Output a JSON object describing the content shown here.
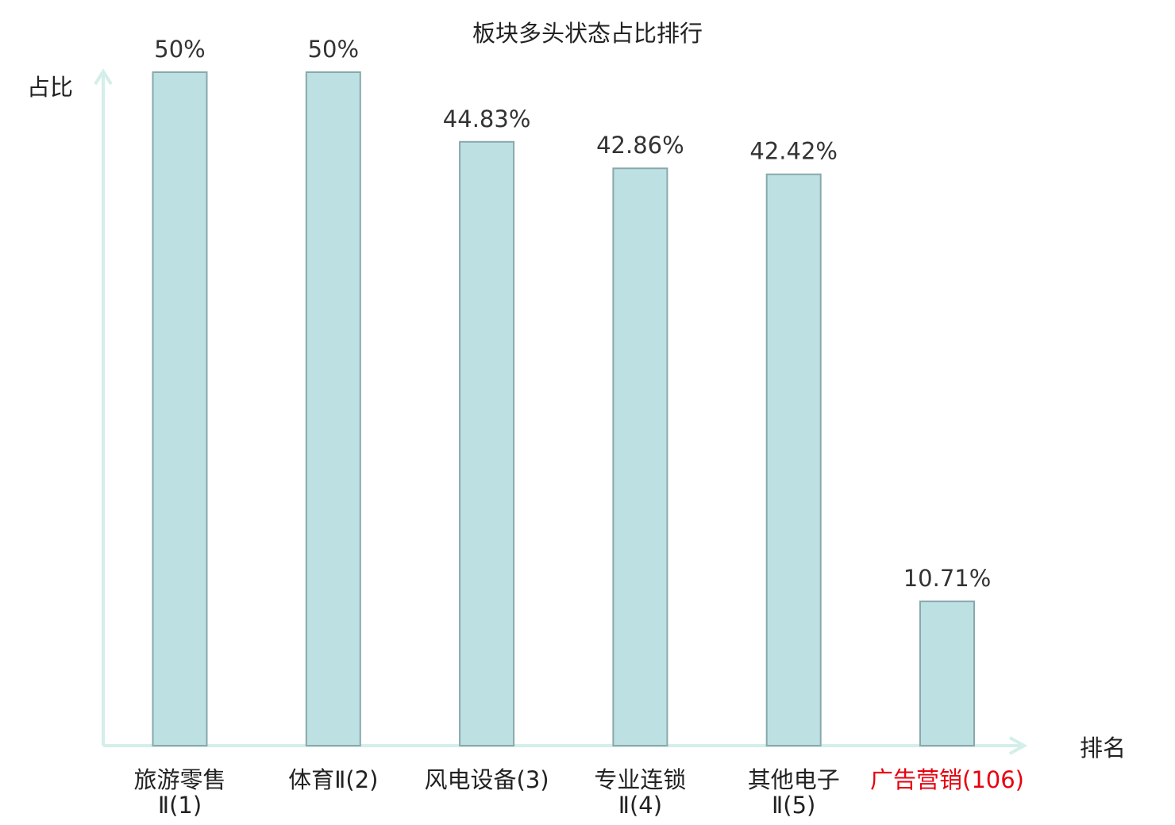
{
  "chart_data": {
    "type": "bar",
    "title": "板块多头状态占比排行",
    "ylabel": "占比",
    "xlabel": "排名",
    "ylim": [
      0,
      50
    ],
    "categories": [
      {
        "name": "旅游零售Ⅱ",
        "rank": "(1)",
        "highlight": false
      },
      {
        "name": "体育Ⅱ",
        "rank": "(2)",
        "highlight": false
      },
      {
        "name": "风电设备",
        "rank": "(3)",
        "highlight": false
      },
      {
        "name": "专业连锁Ⅱ",
        "rank": "(4)",
        "highlight": false
      },
      {
        "name": "其他电子Ⅱ",
        "rank": "(5)",
        "highlight": false
      },
      {
        "name": "广告营销",
        "rank": "(106)",
        "highlight": true
      }
    ],
    "values": [
      50,
      50,
      44.83,
      42.86,
      42.42,
      10.71
    ],
    "value_labels": [
      "50%",
      "50%",
      "44.83%",
      "42.86%",
      "42.42%",
      "10.71%"
    ],
    "grid": false,
    "legend": "none",
    "colors": {
      "bar_fill": "#bde0e3",
      "bar_stroke": "#89a8ab",
      "axis": "#d4eeea",
      "highlight_text": "#e8000f",
      "text": "#222222"
    }
  }
}
